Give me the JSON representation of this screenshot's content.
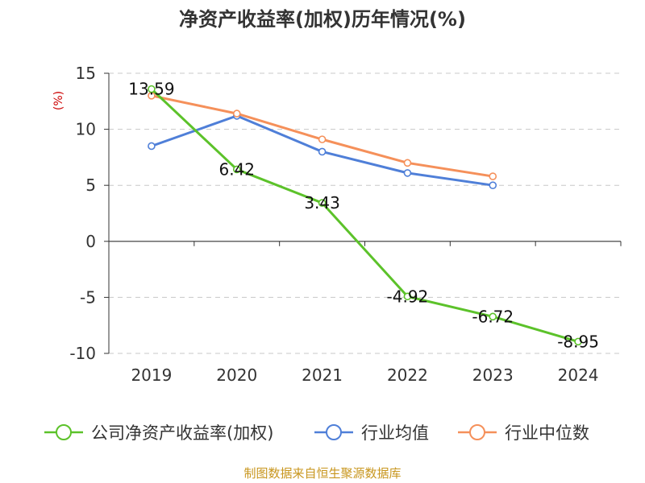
{
  "chart_data": {
    "type": "line",
    "title": "净资产收益率(加权)历年情况(%)",
    "ylabel": "(%)",
    "xlabel": "",
    "ylim": [
      -10,
      15
    ],
    "yticks": [
      15,
      10,
      5,
      0,
      -5,
      -10
    ],
    "categories": [
      "2019",
      "2020",
      "2021",
      "2022",
      "2023",
      "2024"
    ],
    "grid": "horizontal-dashed",
    "legend_position": "bottom",
    "series": [
      {
        "name": "公司净资产收益率(加权)",
        "color": "#5cc22a",
        "values": [
          13.59,
          6.42,
          3.43,
          -4.92,
          -6.72,
          -8.95
        ],
        "data_labels": [
          "13.59",
          "6.42",
          "3.43",
          "-4.92",
          "-6.72",
          "-8.95"
        ]
      },
      {
        "name": "行业均值",
        "color": "#4f7fd8",
        "values": [
          8.5,
          11.2,
          8.0,
          6.1,
          5.0,
          null
        ]
      },
      {
        "name": "行业中位数",
        "color": "#f5905a",
        "values": [
          13.0,
          11.4,
          9.1,
          7.0,
          5.8,
          null
        ]
      }
    ],
    "source": "制图数据来自恒生聚源数据库"
  }
}
